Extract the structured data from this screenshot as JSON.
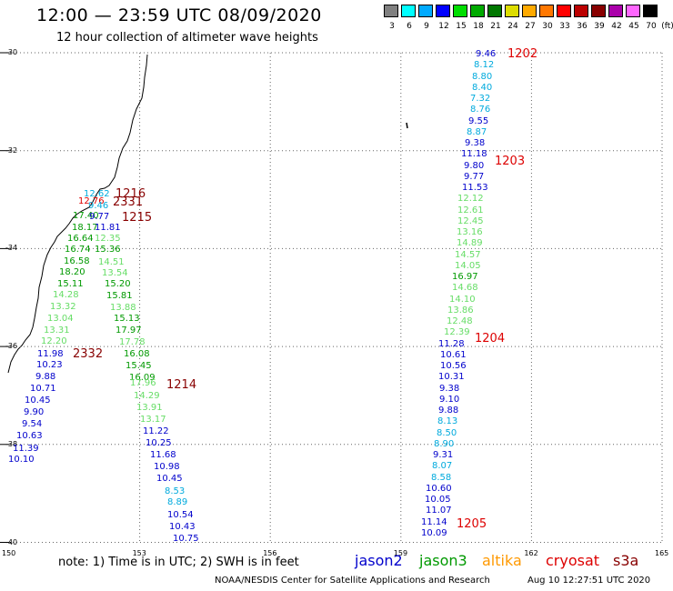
{
  "title": "12:00 — 23:59 UTC 08/09/2020",
  "subtitle": "12 hour collection of altimeter wave heights",
  "legend": {
    "unit": "(ft)",
    "colors": [
      "#808080",
      "#00ffff",
      "#00aaff",
      "#0000ff",
      "#00dd00",
      "#00aa00",
      "#007700",
      "#dddd00",
      "#ffaa00",
      "#ff7700",
      "#ff0000",
      "#bb0000",
      "#880000",
      "#aa00aa",
      "#ff66ff",
      "#000000"
    ],
    "labels": [
      "3",
      "6",
      "9",
      "12",
      "15",
      "18",
      "21",
      "24",
      "27",
      "30",
      "33",
      "36",
      "39",
      "42",
      "45",
      "70"
    ]
  },
  "axes": {
    "lat_labels": [
      "-30",
      "-32",
      "-34",
      "-36",
      "-38",
      "-40"
    ],
    "lon_labels": [
      "150",
      "153",
      "156",
      "159",
      "162",
      "165"
    ]
  },
  "satellite_colors": {
    "jason2": "#0000cc",
    "jason3": "#009900",
    "altika": "#ff9900",
    "cryosat": "#dd0000",
    "s3a": "#880000"
  },
  "track_east": [
    {
      "v": "9.46",
      "c": "#0000cc"
    },
    {
      "v": "8.12",
      "c": "#00aadd"
    },
    {
      "v": "8.80",
      "c": "#00aadd"
    },
    {
      "v": "8.40",
      "c": "#00aadd"
    },
    {
      "v": "7.32",
      "c": "#00aadd"
    },
    {
      "v": "8.76",
      "c": "#00aadd"
    },
    {
      "v": "9.55",
      "c": "#0000cc"
    },
    {
      "v": "8.87",
      "c": "#00aadd"
    },
    {
      "v": "9.38",
      "c": "#0000cc"
    },
    {
      "v": "11.18",
      "c": "#0000cc"
    },
    {
      "v": "9.80",
      "c": "#0000cc"
    },
    {
      "v": "9.77",
      "c": "#0000cc"
    },
    {
      "v": "11.53",
      "c": "#0000cc"
    },
    {
      "v": "12.12",
      "c": "#66dd66"
    },
    {
      "v": "12.61",
      "c": "#66dd66"
    },
    {
      "v": "12.45",
      "c": "#66dd66"
    },
    {
      "v": "13.16",
      "c": "#66dd66"
    },
    {
      "v": "14.89",
      "c": "#66dd66"
    },
    {
      "v": "14.57",
      "c": "#66dd66"
    },
    {
      "v": "14.05",
      "c": "#66dd66"
    },
    {
      "v": "16.97",
      "c": "#009900"
    },
    {
      "v": "14.68",
      "c": "#66dd66"
    },
    {
      "v": "14.10",
      "c": "#66dd66"
    },
    {
      "v": "13.86",
      "c": "#66dd66"
    },
    {
      "v": "12.48",
      "c": "#66dd66"
    },
    {
      "v": "12.39",
      "c": "#66dd66"
    },
    {
      "v": "11.28",
      "c": "#0000cc"
    },
    {
      "v": "10.61",
      "c": "#0000cc"
    },
    {
      "v": "10.56",
      "c": "#0000cc"
    },
    {
      "v": "10.31",
      "c": "#0000cc"
    },
    {
      "v": "9.38",
      "c": "#0000cc"
    },
    {
      "v": "9.10",
      "c": "#0000cc"
    },
    {
      "v": "9.88",
      "c": "#0000cc"
    },
    {
      "v": "8.13",
      "c": "#00aadd"
    },
    {
      "v": "8.50",
      "c": "#00aadd"
    },
    {
      "v": "8.90",
      "c": "#00aadd"
    },
    {
      "v": "9.31",
      "c": "#0000cc"
    },
    {
      "v": "8.07",
      "c": "#00aadd"
    },
    {
      "v": "8.58",
      "c": "#00aadd"
    },
    {
      "v": "10.60",
      "c": "#0000cc"
    },
    {
      "v": "10.05",
      "c": "#0000cc"
    },
    {
      "v": "11.07",
      "c": "#0000cc"
    },
    {
      "v": "11.14",
      "c": "#0000cc"
    },
    {
      "v": "10.09",
      "c": "#0000cc"
    }
  ],
  "track_west_a": [
    {
      "v": "12.62",
      "c": "#00aadd"
    },
    {
      "v": "12.76",
      "c": "#dd0000"
    },
    {
      "v": "17.40",
      "c": "#009900"
    },
    {
      "v": "18.17",
      "c": "#009900"
    },
    {
      "v": "16.64",
      "c": "#009900"
    },
    {
      "v": "16.74",
      "c": "#009900"
    },
    {
      "v": "16.58",
      "c": "#009900"
    },
    {
      "v": "18.20",
      "c": "#009900"
    },
    {
      "v": "15.11",
      "c": "#009900"
    },
    {
      "v": "14.28",
      "c": "#66dd66"
    },
    {
      "v": "13.32",
      "c": "#66dd66"
    },
    {
      "v": "13.04",
      "c": "#66dd66"
    },
    {
      "v": "13.31",
      "c": "#66dd66"
    },
    {
      "v": "12.20",
      "c": "#66dd66"
    },
    {
      "v": "11.98",
      "c": "#0000cc"
    },
    {
      "v": "10.23",
      "c": "#0000cc"
    },
    {
      "v": "9.88",
      "c": "#0000cc"
    },
    {
      "v": "10.71",
      "c": "#0000cc"
    },
    {
      "v": "10.45",
      "c": "#0000cc"
    },
    {
      "v": "9.90",
      "c": "#0000cc"
    },
    {
      "v": "9.54",
      "c": "#0000cc"
    },
    {
      "v": "10.63",
      "c": "#0000cc"
    },
    {
      "v": "11.39",
      "c": "#0000cc"
    },
    {
      "v": "10.10",
      "c": "#0000cc"
    }
  ],
  "track_west_b": [
    {
      "v": "9.46",
      "c": "#00aadd"
    },
    {
      "v": "9.77",
      "c": "#0000cc"
    },
    {
      "v": "11.81",
      "c": "#0000cc"
    },
    {
      "v": "12.35",
      "c": "#66dd66"
    },
    {
      "v": "15.36",
      "c": "#009900"
    },
    {
      "v": "14.51",
      "c": "#66dd66"
    },
    {
      "v": "13.54",
      "c": "#66dd66"
    },
    {
      "v": "15.20",
      "c": "#009900"
    },
    {
      "v": "15.81",
      "c": "#009900"
    },
    {
      "v": "13.88",
      "c": "#66dd66"
    },
    {
      "v": "15.13",
      "c": "#009900"
    },
    {
      "v": "17.97",
      "c": "#009900"
    },
    {
      "v": "17.78",
      "c": "#66dd66"
    },
    {
      "v": "16.08",
      "c": "#009900"
    },
    {
      "v": "15.45",
      "c": "#009900"
    },
    {
      "v": "16.09",
      "c": "#009900"
    },
    {
      "v": "17.96",
      "c": "#66dd66"
    },
    {
      "v": "14.29",
      "c": "#66dd66"
    },
    {
      "v": "13.91",
      "c": "#66dd66"
    },
    {
      "v": "13.17",
      "c": "#66dd66"
    },
    {
      "v": "11.22",
      "c": "#0000cc"
    },
    {
      "v": "10.25",
      "c": "#0000cc"
    },
    {
      "v": "11.68",
      "c": "#0000cc"
    },
    {
      "v": "10.98",
      "c": "#0000cc"
    },
    {
      "v": "10.45",
      "c": "#0000cc"
    },
    {
      "v": "8.53",
      "c": "#00aadd"
    },
    {
      "v": "8.89",
      "c": "#00aadd"
    },
    {
      "v": "10.54",
      "c": "#0000cc"
    },
    {
      "v": "10.43",
      "c": "#0000cc"
    },
    {
      "v": "10.75",
      "c": "#0000cc"
    }
  ],
  "pass_labels": [
    {
      "t": "1202",
      "c": "#dd0000"
    },
    {
      "t": "1203",
      "c": "#dd0000"
    },
    {
      "t": "1204",
      "c": "#dd0000"
    },
    {
      "t": "1205",
      "c": "#dd0000"
    },
    {
      "t": "1216",
      "c": "#880000"
    },
    {
      "t": "2331",
      "c": "#880000"
    },
    {
      "t": "1215",
      "c": "#880000"
    },
    {
      "t": "2332",
      "c": "#880000"
    },
    {
      "t": "1214",
      "c": "#880000"
    }
  ],
  "note": "note:  1) Time is in UTC;  2) SWH is in feet",
  "satellites": [
    "jason2",
    "jason3",
    "altika",
    "cryosat",
    "s3a"
  ],
  "credit": "NOAA/NESDIS Center for Satellite Applications and Research",
  "generated": "Aug 10 12:27:51 UTC 2020"
}
